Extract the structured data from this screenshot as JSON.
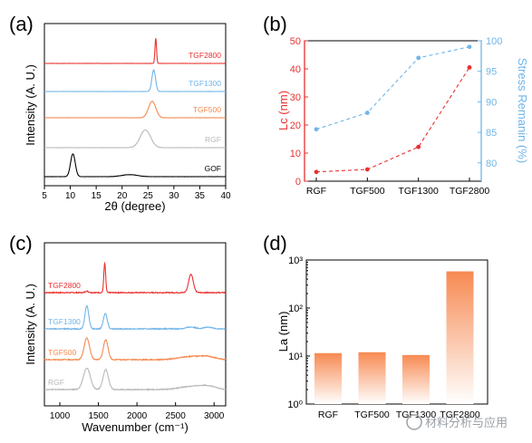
{
  "panel_labels": {
    "a": "(a)",
    "b": "(b)",
    "c": "(c)",
    "d": "(d)"
  },
  "watermark": "材料分析与应用",
  "colors": {
    "red": "#e8312f",
    "blue": "#6fb5e8",
    "orange": "#f5894f",
    "gray": "#b8b8b8",
    "black": "#000000",
    "bar_top": "#f78a52"
  },
  "chart_data": [
    {
      "panel": "a",
      "type": "line",
      "xlabel": "2θ (degree)",
      "ylabel": "Intensity (A. U.)",
      "xlim": [
        5,
        40
      ],
      "xticks": [
        5,
        10,
        15,
        20,
        25,
        30,
        35,
        40
      ],
      "series": [
        {
          "name": "TGF2800",
          "color": "red",
          "peaks": [
            [
              26.5,
              1.0,
              0.15
            ]
          ],
          "offset": 4
        },
        {
          "name": "TGF1300",
          "color": "blue",
          "peaks": [
            [
              26.1,
              0.85,
              0.35
            ]
          ],
          "offset": 3
        },
        {
          "name": "TGF500",
          "color": "orange",
          "peaks": [
            [
              25.8,
              0.65,
              0.7
            ]
          ],
          "offset": 2
        },
        {
          "name": "RGF",
          "color": "gray",
          "peaks": [
            [
              24.5,
              0.7,
              1.0
            ]
          ],
          "offset": 1
        },
        {
          "name": "GOF",
          "color": "black",
          "peaks": [
            [
              10.5,
              0.9,
              0.45
            ],
            [
              21.5,
              0.08,
              1.5
            ]
          ],
          "offset": 0
        }
      ]
    },
    {
      "panel": "b",
      "type": "line",
      "categories": [
        "RGF",
        "TGF500",
        "TGF1300",
        "TGF2800"
      ],
      "ylabel_left": "Lc (nm)",
      "ylabel_right": "Stress Remanin (%)",
      "ylim_left": [
        0,
        50
      ],
      "yticks_left": [
        0,
        10,
        20,
        30,
        40,
        50
      ],
      "ylim_right": [
        77,
        100
      ],
      "yticks_right": [
        80,
        85,
        90,
        95,
        100
      ],
      "series": [
        {
          "name": "Lc (nm)",
          "axis": "left",
          "color": "red",
          "values": [
            3.3,
            4.2,
            12.2,
            40.5
          ]
        },
        {
          "name": "Stress Remanin (%)",
          "axis": "right",
          "color": "blue",
          "values": [
            85.5,
            88.2,
            97.2,
            99.0
          ]
        }
      ]
    },
    {
      "panel": "c",
      "type": "line",
      "xlabel": "Wavenumber (cm⁻¹)",
      "ylabel": "Intensity (A. U.)",
      "xlim": [
        800,
        3150
      ],
      "xticks": [
        1000,
        1500,
        2000,
        2500,
        3000
      ],
      "series": [
        {
          "name": "TGF2800",
          "color": "red",
          "peaks": [
            [
              1350,
              0.05,
              20
            ],
            [
              1582,
              0.95,
              12
            ],
            [
              2700,
              0.6,
              30
            ]
          ],
          "offset": 3
        },
        {
          "name": "TGF1300",
          "color": "blue",
          "peaks": [
            [
              1350,
              0.75,
              25
            ],
            [
              1590,
              0.5,
              25
            ],
            [
              2700,
              0.06,
              60
            ],
            [
              2920,
              0.05,
              60
            ]
          ],
          "offset": 2
        },
        {
          "name": "TGF500",
          "color": "orange",
          "peaks": [
            [
              1350,
              0.7,
              35
            ],
            [
              1595,
              0.65,
              30
            ],
            [
              2700,
              0.1,
              150
            ],
            [
              2920,
              0.08,
              100
            ]
          ],
          "offset": 1
        },
        {
          "name": "RGF",
          "color": "gray",
          "peaks": [
            [
              1350,
              0.7,
              45
            ],
            [
              1595,
              0.65,
              35
            ],
            [
              2700,
              0.1,
              150
            ],
            [
              2920,
              0.1,
              100
            ]
          ],
          "offset": 0
        }
      ]
    },
    {
      "panel": "d",
      "type": "bar",
      "categories": [
        "RGF",
        "TGF500",
        "TGF1300",
        "TGF2800"
      ],
      "values": [
        11.5,
        12.0,
        10.5,
        580
      ],
      "ylabel": "La (nm)",
      "yscale": "log",
      "ylim": [
        1,
        1000
      ],
      "yticks": [
        "10⁰",
        "10¹",
        "10²",
        "10³"
      ]
    }
  ]
}
